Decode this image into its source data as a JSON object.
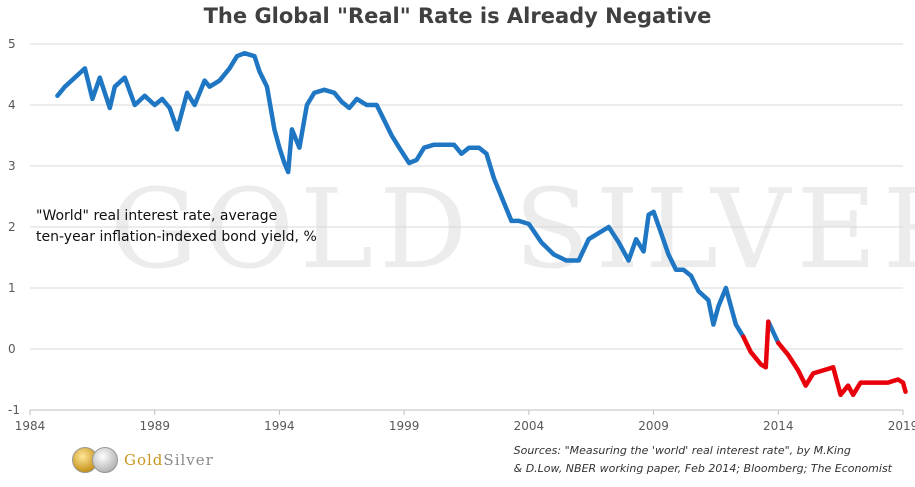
{
  "logo": {
    "brand_gold": "Gold",
    "brand_silver": "Silver"
  },
  "watermark_text": "GOLD SILVER",
  "chart_data": {
    "type": "line",
    "title": "The Global \"Real\" Rate is Already Negative",
    "annotation": [
      "\"World\" real interest rate, average",
      "ten-year inflation-indexed bond yield, %"
    ],
    "sources": [
      "Sources: \"Measuring the 'world' real interest rate\", by M.King",
      "& D.Low, NBER working paper, Feb 2014; Bloomberg; The Economist"
    ],
    "xlim": [
      1984,
      2019
    ],
    "ylim": [
      -1,
      5
    ],
    "x_ticks": [
      1984,
      1989,
      1994,
      1999,
      2004,
      2009,
      2014,
      2019
    ],
    "y_ticks": [
      5,
      4,
      3,
      2,
      1,
      0,
      -1
    ],
    "grid": true,
    "series": [
      {
        "color": "#1f77c4",
        "x": [
          1985.1,
          1985.4,
          1985.8,
          1986.2,
          1986.5,
          1986.8,
          1987.2,
          1987.4,
          1987.8,
          1988.2,
          1988.6,
          1989.0,
          1989.3,
          1989.6,
          1989.9,
          1990.3,
          1990.6,
          1991.0,
          1991.2,
          1991.6,
          1992.0,
          1992.3,
          1992.6,
          1993.0,
          1993.2,
          1993.5,
          1993.8,
          1994.0,
          1994.2,
          1994.35,
          1994.5,
          1994.8,
          1995.1,
          1995.4,
          1995.8,
          1996.2,
          1996.5,
          1996.8,
          1997.1,
          1997.5,
          1997.9,
          1998.2,
          1998.5,
          1998.8,
          1999.2,
          1999.5,
          1999.8,
          2000.2,
          2000.6,
          2001.0,
          2001.3,
          2001.6,
          2002.0,
          2002.3,
          2002.6,
          2003.0,
          2003.3,
          2003.6,
          2004.0,
          2004.5,
          2005.0,
          2005.5,
          2006.0,
          2006.4,
          2006.8,
          2007.2,
          2007.6,
          2008.0,
          2008.3,
          2008.6,
          2008.8,
          2009.0,
          2009.3,
          2009.6,
          2009.9,
          2010.2,
          2010.5,
          2010.8,
          2011.2,
          2011.4,
          2011.6,
          2011.9,
          2012.3,
          2012.6
        ],
        "y": [
          4.15,
          4.3,
          4.45,
          4.6,
          4.1,
          4.45,
          3.95,
          4.3,
          4.45,
          4.0,
          4.15,
          4.0,
          4.1,
          3.95,
          3.6,
          4.2,
          4.0,
          4.4,
          4.3,
          4.4,
          4.6,
          4.8,
          4.85,
          4.8,
          4.55,
          4.3,
          3.6,
          3.3,
          3.05,
          2.9,
          3.6,
          3.3,
          4.0,
          4.2,
          4.25,
          4.2,
          4.05,
          3.95,
          4.1,
          4.0,
          4.0,
          3.75,
          3.5,
          3.3,
          3.05,
          3.1,
          3.3,
          3.35,
          3.35,
          3.35,
          3.2,
          3.3,
          3.3,
          3.2,
          2.8,
          2.4,
          2.1,
          2.1,
          2.05,
          1.75,
          1.55,
          1.45,
          1.45,
          1.8,
          1.9,
          2.0,
          1.75,
          1.45,
          1.8,
          1.6,
          2.2,
          2.25,
          1.9,
          1.55,
          1.3,
          1.3,
          1.2,
          0.95,
          0.8,
          0.4,
          0.7,
          1.0,
          0.4,
          0.2
        ]
      },
      {
        "color": "#1f77c4",
        "x": [
          2013.6,
          2014.0
        ],
        "y": [
          0.45,
          0.1
        ]
      },
      {
        "color": "#e8000b",
        "x": [
          2012.6,
          2012.9,
          2013.3,
          2013.5,
          2013.6
        ],
        "y": [
          0.2,
          -0.05,
          -0.25,
          -0.3,
          0.45
        ]
      },
      {
        "color": "#e8000b",
        "x": [
          2014.0,
          2014.4,
          2014.8,
          2015.1,
          2015.4,
          2015.8,
          2016.2,
          2016.5,
          2016.8,
          2017.0,
          2017.3,
          2017.6,
          2018.0,
          2018.4,
          2018.8,
          2019.0,
          2019.1
        ],
        "y": [
          0.1,
          -0.1,
          -0.35,
          -0.6,
          -0.4,
          -0.35,
          -0.3,
          -0.75,
          -0.6,
          -0.75,
          -0.55,
          -0.55,
          -0.55,
          -0.55,
          -0.5,
          -0.55,
          -0.7
        ]
      }
    ]
  }
}
